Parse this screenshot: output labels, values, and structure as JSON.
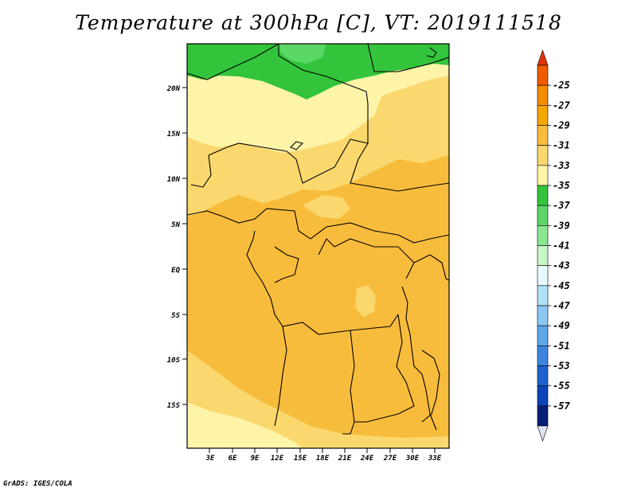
{
  "title": "Temperature at 300hPa [C], VT: 2019111518",
  "credit": "GrADS: IGES/COLA",
  "map": {
    "lat_labels": [
      "20N",
      "15N",
      "10N",
      "5N",
      "EQ",
      "5S",
      "10S",
      "15S"
    ],
    "lon_labels": [
      "3E",
      "6E",
      "9E",
      "12E",
      "15E",
      "18E",
      "21E",
      "24E",
      "27E",
      "30E",
      "33E"
    ]
  },
  "colorbar": {
    "labels": [
      "-25",
      "-27",
      "-29",
      "-31",
      "-33",
      "-35",
      "-37",
      "-39",
      "-41",
      "-43",
      "-45",
      "-47",
      "-49",
      "-51",
      "-53",
      "-55",
      "-57"
    ],
    "colors": [
      "#f05a00",
      "#f58c00",
      "#f5a500",
      "#f8bc3c",
      "#fad86e",
      "#fdf4a8",
      "#33c43c",
      "#5ad766",
      "#8ae690",
      "#c6f5c6",
      "#e6fafe",
      "#aee0f8",
      "#8cc7f2",
      "#5ea6ec",
      "#3c84e0",
      "#1e62d0",
      "#0c44b8",
      "#071d78"
    ],
    "top_arrow_color": "#e1320a",
    "bottom_arrow_color": "#e0e0f5"
  }
}
